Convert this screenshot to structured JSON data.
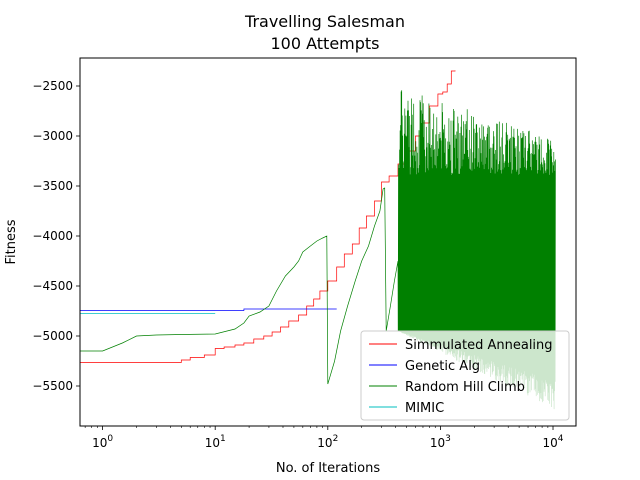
{
  "chart_data": {
    "type": "line",
    "title": "Travelling Salesman\n100 Attempts",
    "title_lines": [
      "Travelling Salesman",
      "100 Attempts"
    ],
    "xlabel": "No. of Iterations",
    "ylabel": "Fitness",
    "xscale": "log",
    "xlim": [
      0.63,
      16000
    ],
    "ylim": [
      -5900,
      -2220
    ],
    "xticks": [
      {
        "value": 1,
        "base": "10",
        "exp": "0"
      },
      {
        "value": 10,
        "base": "10",
        "exp": "1"
      },
      {
        "value": 100,
        "base": "10",
        "exp": "2"
      },
      {
        "value": 1000,
        "base": "10",
        "exp": "3"
      },
      {
        "value": 10000,
        "base": "10",
        "exp": "4"
      }
    ],
    "yticks": [
      {
        "value": -2500,
        "label": "−2500"
      },
      {
        "value": -3000,
        "label": "−3000"
      },
      {
        "value": -3500,
        "label": "−3500"
      },
      {
        "value": -4000,
        "label": "−4000"
      },
      {
        "value": -4500,
        "label": "−4500"
      },
      {
        "value": -5000,
        "label": "−5000"
      },
      {
        "value": -5500,
        "label": "−5500"
      }
    ],
    "grid": false,
    "legend_position": "lower-right",
    "series": [
      {
        "name": "Simmulated Annealing",
        "color": "#ff0000",
        "style": "step",
        "points": [
          [
            0.63,
            -5265
          ],
          [
            4,
            -5265
          ],
          [
            5,
            -5240
          ],
          [
            6,
            -5215
          ],
          [
            8,
            -5190
          ],
          [
            10,
            -5125
          ],
          [
            12,
            -5110
          ],
          [
            15,
            -5090
          ],
          [
            18,
            -5070
          ],
          [
            22,
            -5030
          ],
          [
            27,
            -5000
          ],
          [
            32,
            -4960
          ],
          [
            38,
            -4910
          ],
          [
            45,
            -4850
          ],
          [
            55,
            -4790
          ],
          [
            65,
            -4700
          ],
          [
            75,
            -4630
          ],
          [
            85,
            -4550
          ],
          [
            100,
            -4450
          ],
          [
            120,
            -4310
          ],
          [
            140,
            -4180
          ],
          [
            165,
            -4080
          ],
          [
            190,
            -3920
          ],
          [
            220,
            -3800
          ],
          [
            260,
            -3650
          ],
          [
            300,
            -3460
          ],
          [
            350,
            -3400
          ],
          [
            420,
            -3280
          ],
          [
            500,
            -3150
          ],
          [
            600,
            -3000
          ],
          [
            700,
            -2870
          ],
          [
            800,
            -2700
          ],
          [
            950,
            -2580
          ],
          [
            1050,
            -2560
          ],
          [
            1150,
            -2480
          ],
          [
            1250,
            -2350
          ],
          [
            1350,
            -2345
          ]
        ]
      },
      {
        "name": "Genetic Alg",
        "color": "#0000ff",
        "style": "step",
        "points": [
          [
            0.63,
            -4745
          ],
          [
            17,
            -4745
          ],
          [
            18,
            -4730
          ],
          [
            120,
            -4730
          ]
        ]
      },
      {
        "name": "Random Hill Climb",
        "color": "#008000",
        "style": "noisy",
        "points": [
          [
            0.63,
            -5150
          ],
          [
            1,
            -5150
          ],
          [
            1.5,
            -5070
          ],
          [
            2,
            -5000
          ],
          [
            3,
            -4990
          ],
          [
            5,
            -4985
          ],
          [
            10,
            -4980
          ],
          [
            15,
            -4930
          ],
          [
            18,
            -4870
          ],
          [
            20,
            -4800
          ],
          [
            25,
            -4760
          ],
          [
            30,
            -4700
          ],
          [
            35,
            -4550
          ],
          [
            42,
            -4400
          ],
          [
            50,
            -4310
          ],
          [
            55,
            -4250
          ],
          [
            60,
            -4160
          ],
          [
            70,
            -4100
          ],
          [
            80,
            -4050
          ],
          [
            90,
            -4020
          ],
          [
            98,
            -4000
          ],
          [
            100,
            -5480
          ],
          [
            115,
            -5250
          ],
          [
            130,
            -4950
          ],
          [
            150,
            -4700
          ],
          [
            175,
            -4450
          ],
          [
            200,
            -4250
          ],
          [
            230,
            -4100
          ],
          [
            260,
            -3900
          ],
          [
            290,
            -3750
          ],
          [
            310,
            -3530
          ],
          [
            320,
            -3520
          ],
          [
            330,
            -4950
          ],
          [
            360,
            -4700
          ],
          [
            390,
            -4450
          ],
          [
            420,
            -4250
          ]
        ],
        "noise": {
          "x_start": 420,
          "x_end": 10500,
          "y_lower": -5700,
          "y_upper": -3390
        }
      },
      {
        "name": "MIMIC",
        "color": "#00bfbf",
        "style": "step",
        "points": [
          [
            0.63,
            -4775
          ],
          [
            10,
            -4775
          ]
        ]
      }
    ]
  }
}
